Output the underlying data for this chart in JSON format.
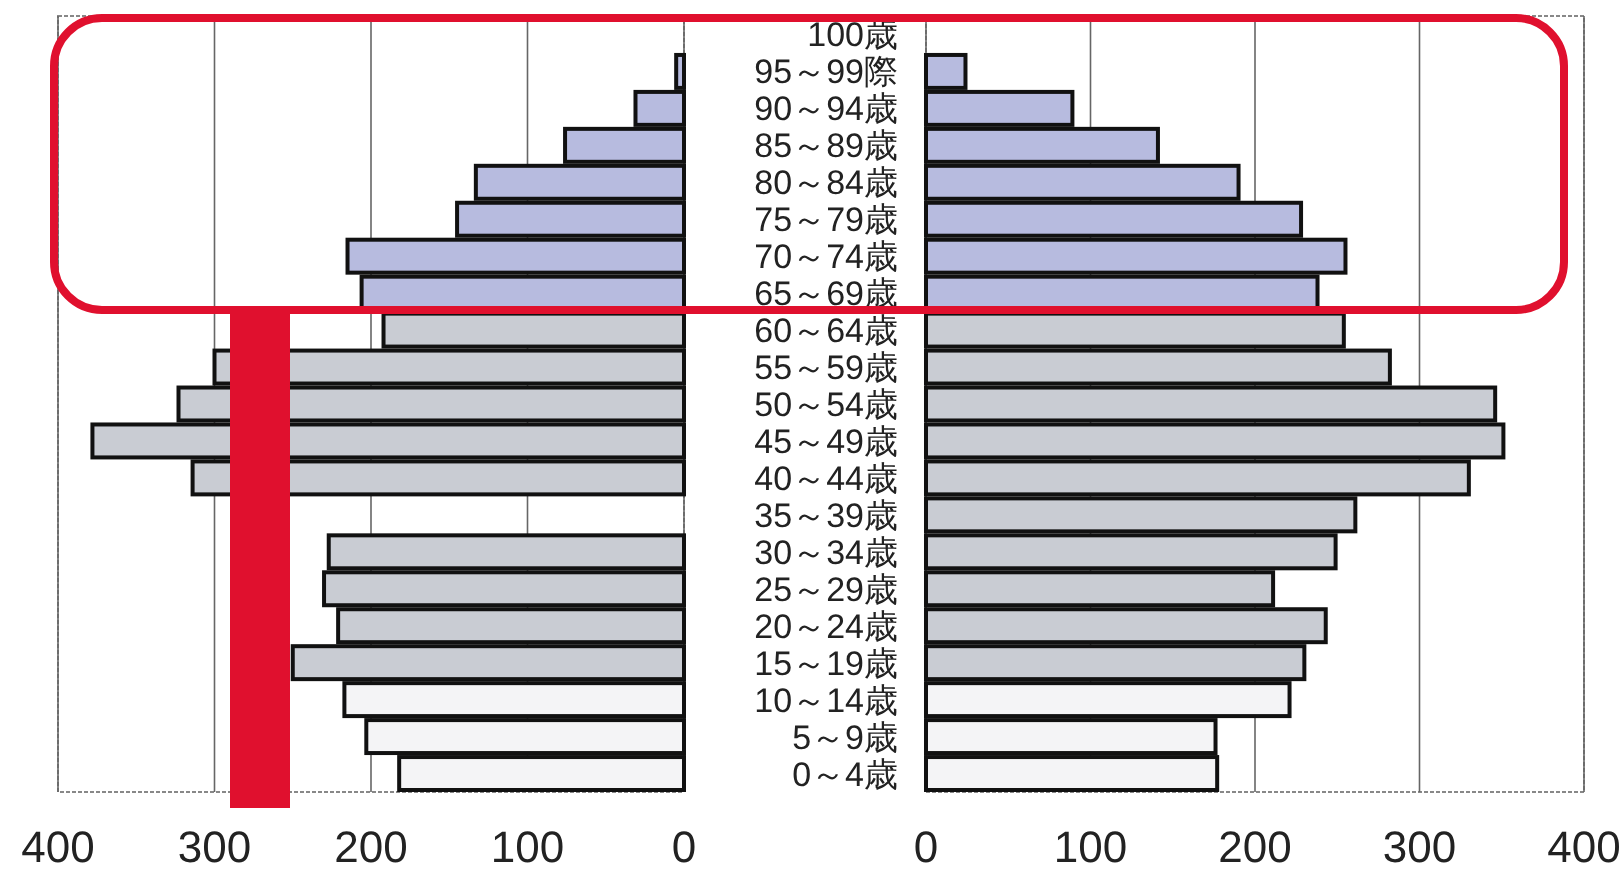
{
  "chart_data": [
    {
      "type": "bar",
      "orientation": "horizontal",
      "categories": [
        "100歳",
        "95～99際",
        "90～94歳",
        "85～89歳",
        "80～84歳",
        "75～79歳",
        "70～74歳",
        "65～69歳",
        "60～64歳",
        "55～59歳",
        "50～54歳",
        "45～49歳",
        "40～44歳",
        "35～39歳",
        "30～34歳",
        "25～29歳",
        "20～24歳",
        "15～19歳",
        "10～14歳",
        "5～9歳",
        "0～4歳"
      ],
      "values": [
        0,
        5,
        31,
        76,
        133,
        145,
        215,
        206,
        192,
        300,
        323,
        378,
        314,
        null,
        227,
        230,
        221,
        250,
        217,
        203,
        182
      ],
      "colors": [
        "#b7bbdf",
        "#b7bbdf",
        "#b7bbdf",
        "#b7bbdf",
        "#b7bbdf",
        "#b7bbdf",
        "#b7bbdf",
        "#b7bbdf",
        "#c9ccd3",
        "#c9ccd3",
        "#c9ccd3",
        "#c9ccd3",
        "#c9ccd3",
        "#c9ccd3",
        "#c9ccd3",
        "#c9ccd3",
        "#c9ccd3",
        "#c9ccd3",
        "#f4f4f6",
        "#f4f4f6",
        "#f4f4f6"
      ],
      "xlim": [
        400,
        0
      ],
      "xticks": [
        400,
        300,
        200,
        100,
        0
      ],
      "grid": "x"
    },
    {
      "type": "bar",
      "orientation": "horizontal",
      "categories": [
        "100歳",
        "95～99際",
        "90～94歳",
        "85～89歳",
        "80～84歳",
        "75～79歳",
        "70～74歳",
        "65～69歳",
        "60～64歳",
        "55～59歳",
        "50～54歳",
        "45～49歳",
        "40～44歳",
        "35～39歳",
        "30～34歳",
        "25～29歳",
        "20～24歳",
        "15～19歳",
        "10～14歳",
        "5～9歳",
        "0～4歳"
      ],
      "values": [
        0,
        24,
        89,
        141,
        190,
        228,
        255,
        238,
        254,
        282,
        346,
        351,
        330,
        261,
        249,
        211,
        243,
        230,
        221,
        176,
        177
      ],
      "colors": [
        "#b7bbdf",
        "#b7bbdf",
        "#b7bbdf",
        "#b7bbdf",
        "#b7bbdf",
        "#b7bbdf",
        "#b7bbdf",
        "#b7bbdf",
        "#c9ccd3",
        "#c9ccd3",
        "#c9ccd3",
        "#c9ccd3",
        "#c9ccd3",
        "#c9ccd3",
        "#c9ccd3",
        "#c9ccd3",
        "#c9ccd3",
        "#c9ccd3",
        "#f4f4f6",
        "#f4f4f6",
        "#f4f4f6"
      ],
      "xlim": [
        0,
        400
      ],
      "xticks": [
        0,
        100,
        200,
        300,
        400
      ],
      "grid": "x",
      "tick_labels": "x"
    }
  ]
}
